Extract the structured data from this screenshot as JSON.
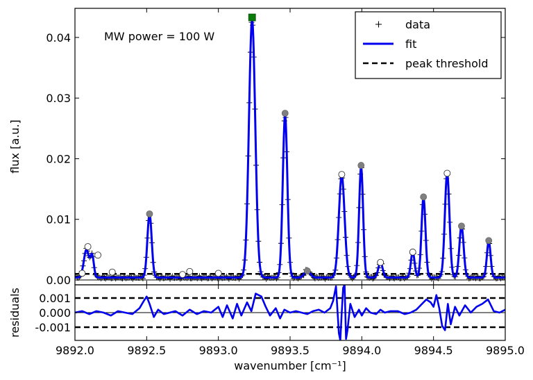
{
  "chart_data": [
    {
      "type": "line",
      "panel": "main",
      "annotation": "MW power = 100 W",
      "xlabel": "wavenumber [cm⁻¹]",
      "ylabel": "flux [a.u.]",
      "xlim": [
        9892.0,
        9895.0
      ],
      "ylim": [
        -0.0008,
        0.0448
      ],
      "x_ticks": [
        "9892.0",
        "9892.5",
        "9893.0",
        "9893.5",
        "9894.0",
        "9894.5",
        "9895.0"
      ],
      "x_tick_values": [
        9892.0,
        9892.5,
        9893.0,
        9893.5,
        9894.0,
        9894.5,
        9895.0
      ],
      "y_ticks": [
        "0.00",
        "0.01",
        "0.02",
        "0.03",
        "0.04"
      ],
      "y_tick_values": [
        0.0,
        0.01,
        0.02,
        0.03,
        0.04
      ],
      "legend": {
        "placement": "top-right",
        "entries": [
          {
            "label": "data",
            "marker": "plus",
            "color": "#000000"
          },
          {
            "label": "fit",
            "style": "solid",
            "color": "#0000ee"
          },
          {
            "label": "peak threshold",
            "style": "dashed",
            "color": "#000000"
          }
        ]
      },
      "peak_threshold": 0.001,
      "baseline": 0.0,
      "baseline_offset": 0.0004,
      "colors": {
        "fit": "#0000ee",
        "data": "#000000",
        "peak": "#808080",
        "max_peak": "#0a7a0a",
        "weak_peak": "#ffffff"
      },
      "peaks": [
        {
          "x": 9892.08,
          "height": 0.0046,
          "width": 0.018
        },
        {
          "x": 9892.12,
          "height": 0.0035,
          "width": 0.012
        },
        {
          "x": 9892.52,
          "height": 0.0105,
          "width": 0.015
        },
        {
          "x": 9893.235,
          "height": 0.0425,
          "width": 0.022
        },
        {
          "x": 9893.465,
          "height": 0.0268,
          "width": 0.016
        },
        {
          "x": 9893.62,
          "height": 0.0012,
          "width": 0.02
        },
        {
          "x": 9893.86,
          "height": 0.0168,
          "width": 0.02
        },
        {
          "x": 9893.995,
          "height": 0.0183,
          "width": 0.014
        },
        {
          "x": 9894.13,
          "height": 0.0025,
          "width": 0.015
        },
        {
          "x": 9894.355,
          "height": 0.0042,
          "width": 0.013
        },
        {
          "x": 9894.43,
          "height": 0.0132,
          "width": 0.014
        },
        {
          "x": 9894.595,
          "height": 0.0172,
          "width": 0.016
        },
        {
          "x": 9894.695,
          "height": 0.0085,
          "width": 0.015
        },
        {
          "x": 9894.885,
          "height": 0.006,
          "width": 0.013
        }
      ],
      "peak_markers": [
        {
          "x": 9892.05,
          "y": 0.0011,
          "kind": "weak"
        },
        {
          "x": 9892.09,
          "y": 0.0055,
          "kind": "weak"
        },
        {
          "x": 9892.16,
          "y": 0.0041,
          "kind": "weak"
        },
        {
          "x": 9892.26,
          "y": 0.0013,
          "kind": "weak"
        },
        {
          "x": 9892.52,
          "y": 0.0109,
          "kind": "strong"
        },
        {
          "x": 9892.75,
          "y": 0.0009,
          "kind": "weak"
        },
        {
          "x": 9892.8,
          "y": 0.0014,
          "kind": "weak"
        },
        {
          "x": 9893.0,
          "y": 0.0011,
          "kind": "weak"
        },
        {
          "x": 9893.235,
          "y": 0.0433,
          "kind": "max"
        },
        {
          "x": 9893.465,
          "y": 0.0275,
          "kind": "strong"
        },
        {
          "x": 9893.62,
          "y": 0.0015,
          "kind": "strong"
        },
        {
          "x": 9893.86,
          "y": 0.0174,
          "kind": "weak"
        },
        {
          "x": 9893.995,
          "y": 0.0189,
          "kind": "strong"
        },
        {
          "x": 9894.13,
          "y": 0.0029,
          "kind": "weak"
        },
        {
          "x": 9894.355,
          "y": 0.0046,
          "kind": "weak"
        },
        {
          "x": 9894.43,
          "y": 0.0137,
          "kind": "strong"
        },
        {
          "x": 9894.595,
          "y": 0.0176,
          "kind": "weak"
        },
        {
          "x": 9894.695,
          "y": 0.0089,
          "kind": "strong"
        },
        {
          "x": 9894.885,
          "y": 0.0065,
          "kind": "strong"
        }
      ]
    },
    {
      "type": "line",
      "panel": "residuals",
      "ylabel": "residuals",
      "xlim": [
        9892.0,
        9895.0
      ],
      "ylim": [
        -0.0019,
        0.0019
      ],
      "y_ticks": [
        "0.001",
        "0.000",
        "-0.001"
      ],
      "y_tick_values": [
        0.001,
        0.0,
        -0.001
      ],
      "threshold_lines": [
        0.001,
        -0.001
      ],
      "series": [
        {
          "color": "#0000ee",
          "x": [
            9892.0,
            9892.05,
            9892.1,
            9892.15,
            9892.2,
            9892.25,
            9892.3,
            9892.35,
            9892.4,
            9892.45,
            9892.48,
            9892.5,
            9892.52,
            9892.55,
            9892.58,
            9892.62,
            9892.66,
            9892.7,
            9892.75,
            9892.8,
            9892.85,
            9892.9,
            9892.95,
            9893.0,
            9893.03,
            9893.06,
            9893.1,
            9893.13,
            9893.16,
            9893.2,
            9893.23,
            9893.26,
            9893.3,
            9893.33,
            9893.36,
            9893.4,
            9893.43,
            9893.46,
            9893.5,
            9893.54,
            9893.58,
            9893.62,
            9893.66,
            9893.7,
            9893.74,
            9893.78,
            9893.8,
            9893.82,
            9893.84,
            9893.85,
            9893.86,
            9893.87,
            9893.88,
            9893.89,
            9893.9,
            9893.92,
            9893.95,
            9893.98,
            9894.0,
            9894.03,
            9894.06,
            9894.1,
            9894.13,
            9894.16,
            9894.2,
            9894.25,
            9894.3,
            9894.34,
            9894.38,
            9894.42,
            9894.45,
            9894.48,
            9894.5,
            9894.52,
            9894.54,
            9894.56,
            9894.58,
            9894.6,
            9894.62,
            9894.65,
            9894.68,
            9894.72,
            9894.76,
            9894.8,
            9894.84,
            9894.88,
            9894.92,
            9894.96,
            9895.0
          ],
          "y": [
            0.0,
            0.0001,
            -0.0001,
            0.0001,
            0.0,
            -0.0002,
            0.0001,
            0.0,
            -0.0001,
            0.0003,
            0.0008,
            0.0011,
            0.0006,
            -0.0003,
            0.0002,
            -0.0001,
            0.0,
            0.0001,
            -0.0002,
            0.0002,
            -0.0001,
            0.0001,
            0.0,
            0.0004,
            -0.0003,
            0.0005,
            -0.0004,
            0.0006,
            -0.0002,
            0.0007,
            0.0001,
            0.0013,
            0.0011,
            0.0004,
            -0.0002,
            0.0003,
            -0.0004,
            0.0002,
            0.0,
            0.0001,
            0.0,
            -0.0001,
            0.0001,
            0.0002,
            0.0,
            0.0003,
            0.0008,
            0.0018,
            -0.0014,
            -0.0019,
            0.0,
            0.0017,
            0.0019,
            -0.0018,
            -0.0012,
            0.0006,
            -0.0003,
            0.0002,
            -0.0002,
            0.0003,
            0.0,
            -0.0001,
            0.0002,
            0.0,
            0.0001,
            0.0001,
            -0.0001,
            0.0,
            0.0002,
            0.0006,
            0.0009,
            0.0007,
            0.0004,
            0.0012,
            0.0003,
            -0.0009,
            -0.0012,
            0.0006,
            -0.0008,
            0.0004,
            -0.0002,
            0.0005,
            0.0,
            0.0004,
            0.0006,
            0.0009,
            0.0001,
            0.0,
            0.0002
          ]
        }
      ]
    }
  ]
}
